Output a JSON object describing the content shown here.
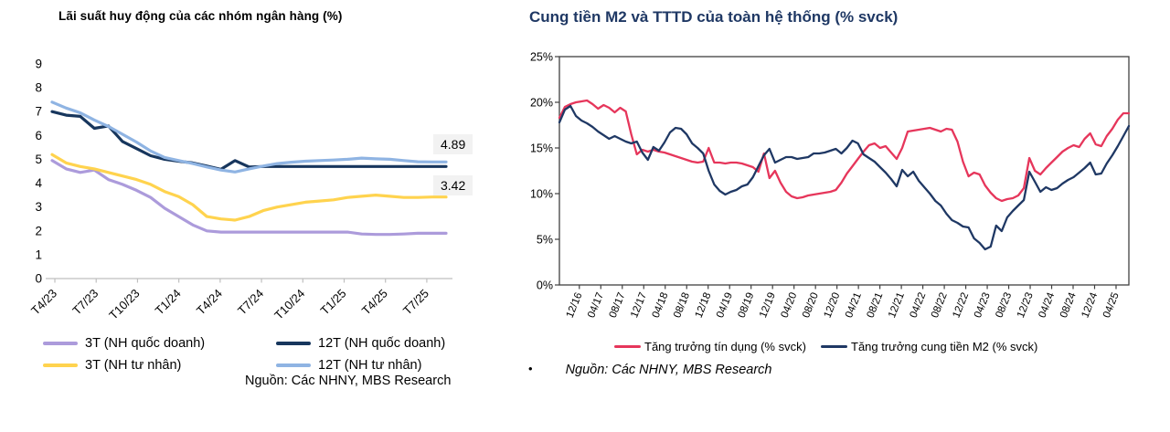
{
  "accent_color": "#1F3864",
  "chart_data": [
    {
      "type": "line",
      "title": "Lãi suất huy động của các nhóm ngân hàng (%)",
      "source": "Nguồn: Các NHNY, MBS Research",
      "ylim": [
        0,
        9
      ],
      "y_tick_labels": [
        "0",
        "1",
        "2",
        "3",
        "4",
        "5",
        "6",
        "7",
        "8",
        "9"
      ],
      "y_tick_values": [
        0,
        1,
        2,
        3,
        4,
        5,
        6,
        7,
        8,
        9
      ],
      "x_tick_labels": [
        "T4/23",
        "T7/23",
        "T10/23",
        "T1/24",
        "T4/24",
        "T7/24",
        "T10/24",
        "T1/25",
        "T4/25",
        "T7/25"
      ],
      "grid": false,
      "legend_position": "bottom",
      "annotations": [
        {
          "text": "4.89",
          "series": "12T (NH tư nhân)"
        },
        {
          "text": "3.42",
          "series": "3T (NH tư nhân)"
        }
      ],
      "series": [
        {
          "name": "3T (NH quốc doanh)",
          "color": "#AC9BDB",
          "values": [
            4.95,
            4.6,
            4.45,
            4.55,
            4.15,
            3.95,
            3.7,
            3.4,
            2.95,
            2.6,
            2.25,
            2.0,
            1.95,
            1.95,
            1.95,
            1.95,
            1.95,
            1.95,
            1.95,
            1.95,
            1.95,
            1.95,
            1.87,
            1.85,
            1.85,
            1.87,
            1.9,
            1.9,
            1.9
          ]
        },
        {
          "name": "3T (NH tư nhân)",
          "color": "#FFD34E",
          "values": [
            5.2,
            4.85,
            4.7,
            4.6,
            4.45,
            4.3,
            4.15,
            3.95,
            3.65,
            3.44,
            3.1,
            2.6,
            2.5,
            2.45,
            2.6,
            2.85,
            3.0,
            3.1,
            3.2,
            3.25,
            3.3,
            3.4,
            3.45,
            3.5,
            3.45,
            3.4,
            3.4,
            3.42,
            3.42
          ]
        },
        {
          "name": "12T (NH quốc doanh)",
          "color": "#17365D",
          "values": [
            7.0,
            6.85,
            6.8,
            6.3,
            6.4,
            5.75,
            5.45,
            5.15,
            5.0,
            4.92,
            4.85,
            4.72,
            4.58,
            4.95,
            4.68,
            4.7,
            4.7,
            4.7,
            4.7,
            4.7,
            4.7,
            4.7,
            4.7,
            4.7,
            4.7,
            4.7,
            4.7,
            4.7,
            4.7
          ]
        },
        {
          "name": "12T (NH tư nhân)",
          "color": "#8FB4E3",
          "values": [
            7.4,
            7.15,
            6.95,
            6.65,
            6.38,
            6.05,
            5.72,
            5.35,
            5.08,
            4.95,
            4.82,
            4.68,
            4.55,
            4.47,
            4.6,
            4.72,
            4.82,
            4.88,
            4.92,
            4.95,
            4.97,
            5.0,
            5.05,
            5.02,
            5.0,
            4.95,
            4.9,
            4.89,
            4.89
          ]
        }
      ]
    },
    {
      "type": "line",
      "title": "Cung tiền M2 và TTTD của toàn hệ thống (% svck)",
      "source": "Nguồn: Các NHNY, MBS Research",
      "source_bullet": "•",
      "ylim": [
        0,
        25
      ],
      "y_tick_labels": [
        "0%",
        "5%",
        "10%",
        "15%",
        "20%",
        "25%"
      ],
      "y_tick_values": [
        0,
        5,
        10,
        15,
        20,
        25
      ],
      "x_tick_labels": [
        "12/16",
        "04/17",
        "08/17",
        "12/17",
        "04/18",
        "08/18",
        "12/18",
        "04/19",
        "08/19",
        "12/19",
        "04/20",
        "08/20",
        "12/20",
        "04/21",
        "08/21",
        "12/21",
        "04/22",
        "08/22",
        "12/22",
        "04/23",
        "08/23",
        "12/23",
        "04/24",
        "08/24",
        "12/24",
        "04/25"
      ],
      "grid": false,
      "legend_position": "bottom",
      "series": [
        {
          "name": "Tăng trưởng tín dụng (% svck)",
          "color": "#E6365B",
          "values": [
            18.3,
            19.5,
            19.8,
            20.0,
            20.1,
            20.2,
            19.8,
            19.3,
            19.7,
            19.4,
            18.9,
            19.4,
            19.0,
            16.5,
            14.3,
            14.8,
            14.6,
            14.8,
            14.6,
            14.5,
            14.3,
            14.1,
            13.9,
            13.7,
            13.5,
            13.4,
            13.5,
            15.0,
            13.4,
            13.4,
            13.3,
            13.4,
            13.4,
            13.3,
            13.1,
            12.9,
            12.4,
            14.4,
            11.7,
            12.5,
            11.2,
            10.2,
            9.7,
            9.5,
            9.6,
            9.8,
            9.9,
            10.0,
            10.1,
            10.2,
            10.4,
            11.2,
            12.2,
            13.0,
            13.8,
            14.6,
            15.3,
            15.5,
            15.0,
            15.2,
            14.5,
            13.8,
            15.0,
            16.8,
            16.9,
            17.0,
            17.1,
            17.2,
            17.0,
            16.8,
            17.1,
            17.0,
            15.7,
            13.5,
            11.9,
            12.3,
            12.1,
            10.9,
            10.1,
            9.5,
            9.2,
            9.4,
            9.5,
            9.8,
            10.6,
            13.9,
            12.5,
            12.1,
            12.8,
            13.4,
            14.0,
            14.6,
            15.0,
            15.3,
            15.1,
            16.0,
            16.6,
            15.4,
            15.2,
            16.3,
            17.1,
            18.1,
            18.8,
            18.8
          ]
        },
        {
          "name": "Tăng trưởng cung tiền M2 (% svck)",
          "color": "#1F3864",
          "values": [
            17.8,
            19.2,
            19.6,
            18.5,
            18.0,
            17.7,
            17.3,
            16.8,
            16.4,
            16.0,
            16.3,
            16.0,
            15.7,
            15.5,
            15.7,
            14.5,
            13.7,
            15.1,
            14.7,
            15.6,
            16.7,
            17.2,
            17.1,
            16.5,
            15.5,
            15.0,
            14.4,
            12.5,
            11.0,
            10.3,
            9.9,
            10.2,
            10.4,
            10.8,
            11.0,
            11.8,
            13.0,
            14.2,
            14.9,
            13.4,
            13.7,
            14.0,
            14.0,
            13.8,
            13.9,
            14.0,
            14.4,
            14.4,
            14.5,
            14.7,
            14.9,
            14.4,
            15.0,
            15.8,
            15.5,
            14.3,
            13.9,
            13.5,
            12.9,
            12.3,
            11.6,
            10.8,
            12.6,
            11.9,
            12.4,
            11.4,
            10.7,
            10.0,
            9.2,
            8.7,
            7.8,
            7.1,
            6.8,
            6.4,
            6.3,
            5.1,
            4.6,
            3.9,
            4.2,
            6.5,
            5.9,
            7.4,
            8.1,
            8.7,
            9.3,
            12.4,
            11.3,
            10.2,
            10.7,
            10.4,
            10.6,
            11.1,
            11.5,
            11.8,
            12.3,
            12.8,
            13.4,
            12.1,
            12.2,
            13.3,
            14.2,
            15.2,
            16.3,
            17.4
          ]
        }
      ]
    }
  ]
}
